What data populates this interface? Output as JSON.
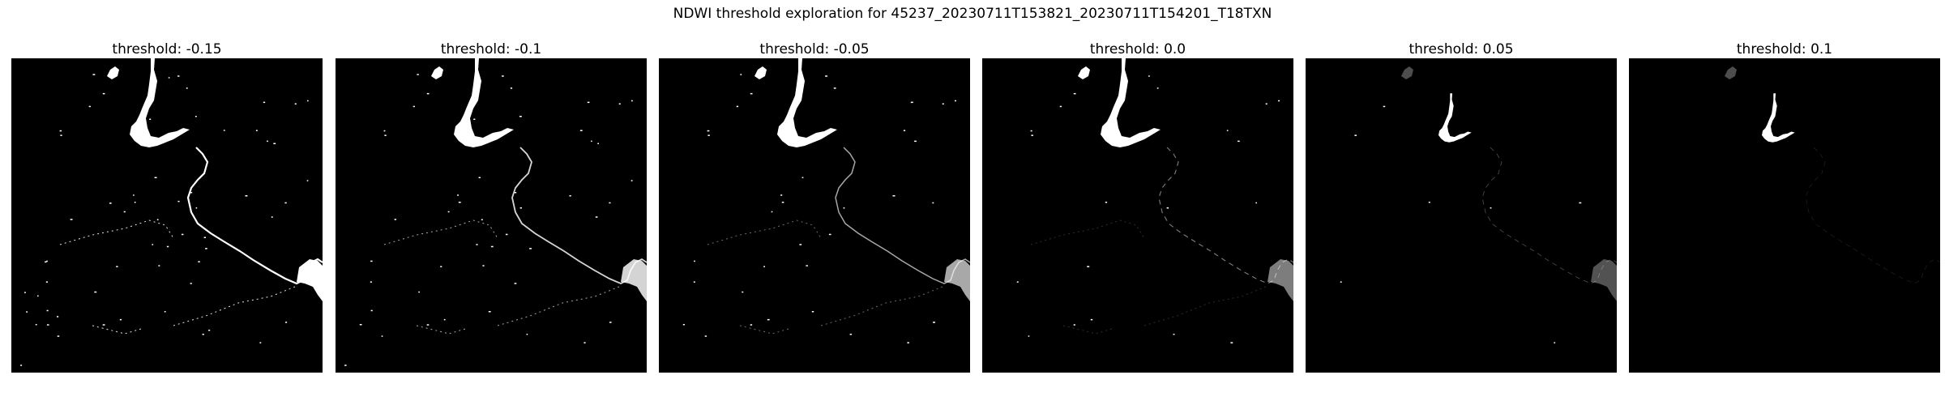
{
  "figure": {
    "title": "NDWI threshold exploration for 45237_20230711T153821_20230711T154201_T18TXN"
  },
  "colors": {
    "background": "#000000",
    "water": "#ffffff"
  },
  "chart_data": {
    "type": "heatmap",
    "title": "NDWI threshold exploration for 45237_20230711T153821_20230711T154201_T18TXN",
    "colormap": "binary (water = white, non-water = black)",
    "panels": [
      {
        "title": "threshold: -0.15",
        "threshold": -0.15
      },
      {
        "title": "threshold: -0.1",
        "threshold": -0.1
      },
      {
        "title": "threshold: -0.05",
        "threshold": -0.05
      },
      {
        "title": "threshold: 0.0",
        "threshold": 0.0
      },
      {
        "title": "threshold: 0.05",
        "threshold": 0.05
      },
      {
        "title": "threshold: 0.1",
        "threshold": 0.1
      }
    ]
  }
}
